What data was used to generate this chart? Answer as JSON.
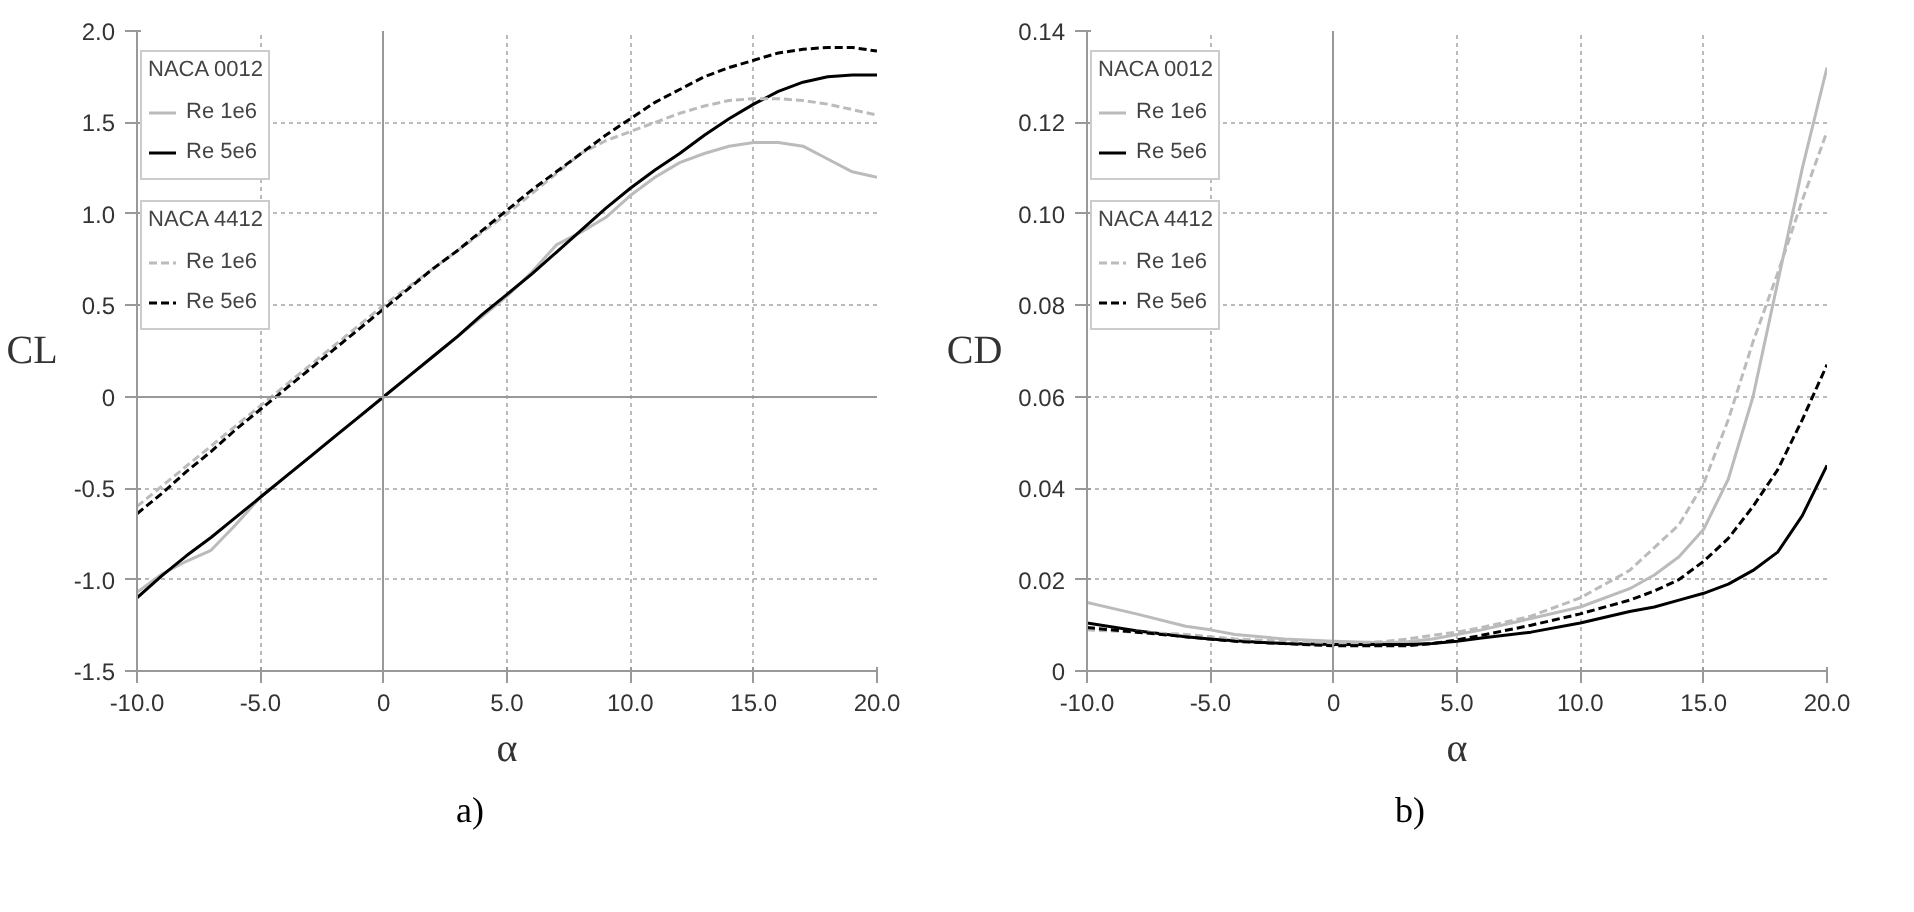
{
  "chart_data": [
    {
      "type": "line",
      "xlabel": "α",
      "ylabel": "CL",
      "annotations": [
        "NACA 0012",
        "NACA 4412",
        "a)"
      ],
      "x": [
        -10,
        -9,
        -8,
        -7,
        -6,
        -5,
        -4,
        -3,
        -2,
        -1,
        0,
        1,
        2,
        3,
        4,
        5,
        6,
        7,
        8,
        9,
        10,
        11,
        12,
        13,
        14,
        15,
        16,
        17,
        18,
        19,
        20
      ],
      "series": [
        {
          "name": "Re 1e6",
          "color": "#bbbbbb",
          "line_style": "solid",
          "values": [
            -1.07,
            -0.97,
            -0.9,
            -0.84,
            -0.7,
            -0.55,
            -0.44,
            -0.33,
            -0.22,
            -0.11,
            0,
            0.11,
            0.22,
            0.33,
            0.44,
            0.55,
            0.68,
            0.83,
            0.9,
            0.98,
            1.1,
            1.2,
            1.28,
            1.33,
            1.37,
            1.39,
            1.39,
            1.37,
            1.3,
            1.23,
            1.2
          ]
        },
        {
          "name": "Re 5e6",
          "color": "#000000",
          "line_style": "solid",
          "values": [
            -1.1,
            -0.98,
            -0.87,
            -0.77,
            -0.66,
            -0.55,
            -0.44,
            -0.33,
            -0.22,
            -0.11,
            0,
            0.11,
            0.22,
            0.33,
            0.45,
            0.56,
            0.67,
            0.79,
            0.91,
            1.03,
            1.14,
            1.24,
            1.33,
            1.43,
            1.52,
            1.6,
            1.67,
            1.72,
            1.75,
            1.76,
            1.76
          ]
        },
        {
          "name": "Re 1e6",
          "color": "#bbbbbb",
          "line_style": "dashed",
          "values": [
            -0.6,
            -0.49,
            -0.38,
            -0.27,
            -0.16,
            -0.05,
            0.06,
            0.17,
            0.28,
            0.39,
            0.5,
            0.6,
            0.7,
            0.8,
            0.9,
            1.0,
            1.11,
            1.22,
            1.33,
            1.4,
            1.45,
            1.5,
            1.55,
            1.59,
            1.62,
            1.63,
            1.63,
            1.62,
            1.6,
            1.57,
            1.54
          ]
        },
        {
          "name": "Re 5e6",
          "color": "#000000",
          "line_style": "dashed",
          "values": [
            -0.64,
            -0.53,
            -0.41,
            -0.3,
            -0.18,
            -0.07,
            0.04,
            0.15,
            0.26,
            0.37,
            0.48,
            0.59,
            0.7,
            0.8,
            0.91,
            1.02,
            1.13,
            1.23,
            1.33,
            1.43,
            1.52,
            1.61,
            1.68,
            1.75,
            1.8,
            1.84,
            1.88,
            1.9,
            1.91,
            1.91,
            1.89
          ]
        }
      ],
      "xlim": [
        -10,
        20
      ],
      "ylim": [
        -1.5,
        2.0
      ],
      "xticks": [
        {
          "value": -10,
          "label": "-10.0"
        },
        {
          "value": -5,
          "label": "-5.0"
        },
        0,
        {
          "value": 5,
          "label": "5.0"
        },
        {
          "value": 10,
          "label": "10.0"
        },
        {
          "value": 15,
          "label": "15.0"
        },
        {
          "value": 20,
          "label": "20.0"
        }
      ],
      "yticks": [
        -1.5,
        {
          "value": -1,
          "label": "-1.0"
        },
        -0.5,
        0,
        0.5,
        {
          "value": 1,
          "label": "1.0"
        },
        1.5,
        {
          "value": 2,
          "label": "2.0"
        }
      ],
      "grid": true,
      "legend": "top left",
      "marker": "none"
    },
    {
      "type": "line",
      "xlabel": "α",
      "ylabel": "CD",
      "annotations": [
        "NACA 0012",
        "NACA 4412",
        "b)"
      ],
      "x": [
        -10,
        -8,
        -6,
        -5,
        -4,
        -2,
        0,
        2,
        3,
        4,
        5,
        6,
        8,
        10,
        12,
        13,
        14,
        15,
        16,
        17,
        18,
        19,
        20
      ],
      "series": [
        {
          "name": "Re 1e6",
          "color": "#bbbbbb",
          "line_style": "solid",
          "values": [
            0.015,
            0.0125,
            0.0098,
            0.009,
            0.008,
            0.007,
            0.0065,
            0.0062,
            0.0064,
            0.007,
            0.008,
            0.009,
            0.0115,
            0.014,
            0.018,
            0.021,
            0.025,
            0.031,
            0.042,
            0.06,
            0.085,
            0.11,
            0.132
          ]
        },
        {
          "name": "Re 5e6",
          "color": "#000000",
          "line_style": "solid",
          "values": [
            0.0105,
            0.0088,
            0.0075,
            0.007,
            0.0066,
            0.006,
            0.0058,
            0.0058,
            0.0058,
            0.006,
            0.0065,
            0.0072,
            0.0085,
            0.0105,
            0.013,
            0.014,
            0.0155,
            0.017,
            0.019,
            0.022,
            0.026,
            0.034,
            0.045
          ]
        },
        {
          "name": "Re 1e6",
          "color": "#bbbbbb",
          "line_style": "dashed",
          "values": [
            0.009,
            0.0085,
            0.008,
            0.0075,
            0.007,
            0.0065,
            0.006,
            0.0064,
            0.007,
            0.0078,
            0.0085,
            0.0095,
            0.012,
            0.016,
            0.022,
            0.027,
            0.032,
            0.041,
            0.055,
            0.072,
            0.087,
            0.103,
            0.118
          ]
        },
        {
          "name": "Re 5e6",
          "color": "#000000",
          "line_style": "dashed",
          "values": [
            0.0095,
            0.0085,
            0.0075,
            0.007,
            0.0065,
            0.006,
            0.0055,
            0.0055,
            0.0055,
            0.006,
            0.0068,
            0.0078,
            0.01,
            0.0125,
            0.0155,
            0.0175,
            0.02,
            0.024,
            0.029,
            0.036,
            0.044,
            0.055,
            0.067
          ]
        }
      ],
      "xlim": [
        -10,
        20
      ],
      "ylim": [
        0,
        0.14
      ],
      "xticks": [
        {
          "value": -10,
          "label": "-10.0"
        },
        {
          "value": -5,
          "label": "-5.0"
        },
        0,
        {
          "value": 5,
          "label": "5.0"
        },
        {
          "value": 10,
          "label": "10.0"
        },
        {
          "value": 15,
          "label": "15.0"
        },
        {
          "value": 20,
          "label": "20.0"
        }
      ],
      "yticks": [
        0,
        0.02,
        0.04,
        0.06,
        0.08,
        {
          "value": 0.1,
          "label": "0.10"
        },
        0.12,
        0.14
      ],
      "grid": true,
      "legend": "top left",
      "marker": "none"
    }
  ]
}
